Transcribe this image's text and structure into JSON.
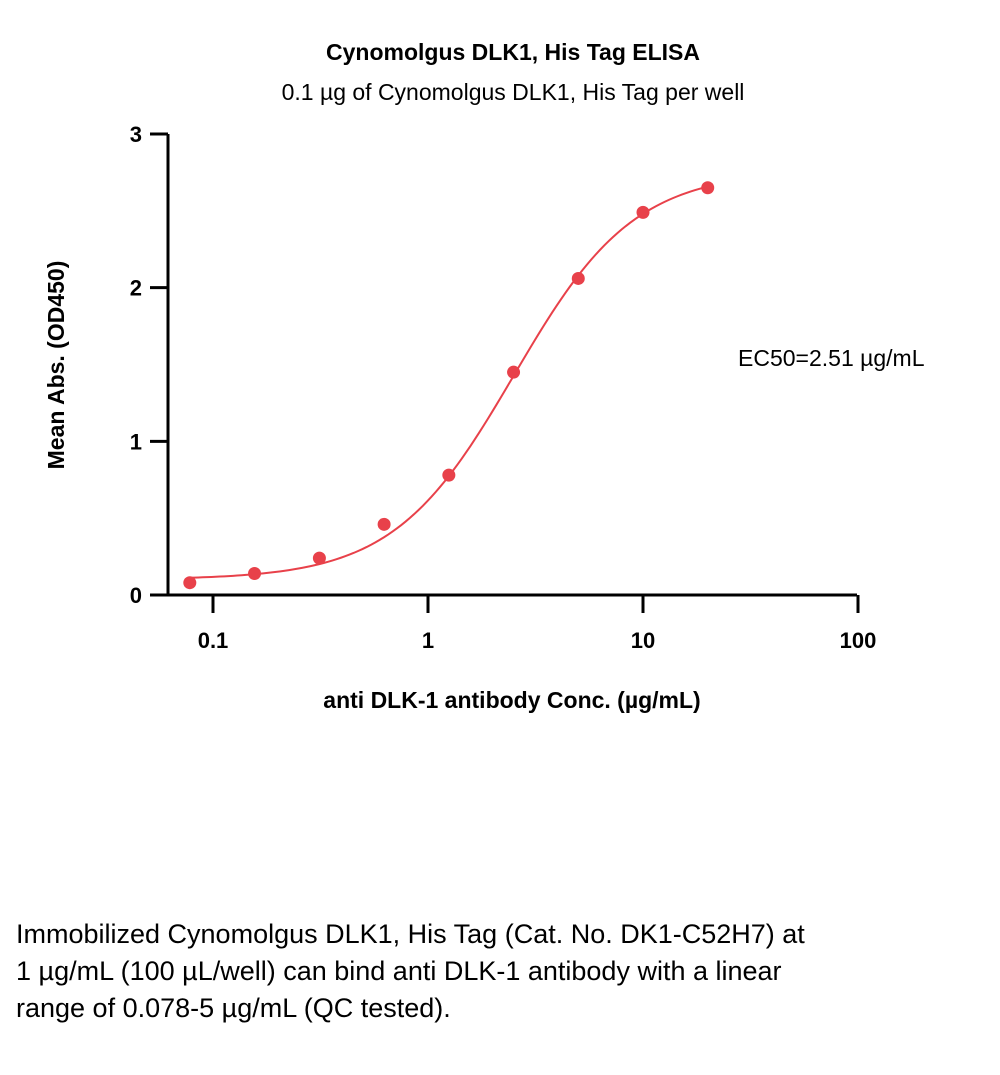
{
  "chart_data": {
    "type": "scatter",
    "title": "Cynomolgus DLK1, His Tag ELISA",
    "subtitle": "0.1 µg of Cynomolgus DLK1, His Tag per well",
    "xlabel": "anti DLK-1 antibody Conc. (µg/mL)",
    "ylabel": "Mean Abs. (OD450)",
    "xscale": "log",
    "xlim": [
      0.07,
      100
    ],
    "ylim": [
      0,
      3
    ],
    "xticks": [
      0.1,
      1,
      10,
      100
    ],
    "xtick_labels": [
      "0.1",
      "1",
      "10",
      "100"
    ],
    "yticks": [
      0,
      1,
      2,
      3
    ],
    "ytick_labels": [
      "0",
      "1",
      "2",
      "3"
    ],
    "grid": false,
    "color": "#e8414a",
    "series": [
      {
        "x": [
          0.078,
          0.156,
          0.3125,
          0.625,
          1.25,
          2.5,
          5,
          10,
          20
        ],
        "y": [
          0.08,
          0.14,
          0.24,
          0.46,
          0.78,
          1.45,
          2.06,
          2.49,
          2.65
        ]
      }
    ],
    "fit_curve": {
      "type": "4PL",
      "bottom": 0.1,
      "top": 2.76,
      "ec50": 2.51,
      "hill": 1.55
    },
    "annotations": [
      "EC50=2.51 µg/mL"
    ]
  },
  "caption": "Immobilized Cynomolgus DLK1, His Tag (Cat. No. DK1-C52H7) at 1 µg/mL (100 µL/well) can bind anti DLK-1 antibody with a linear range of 0.078-5 µg/mL (QC tested)."
}
